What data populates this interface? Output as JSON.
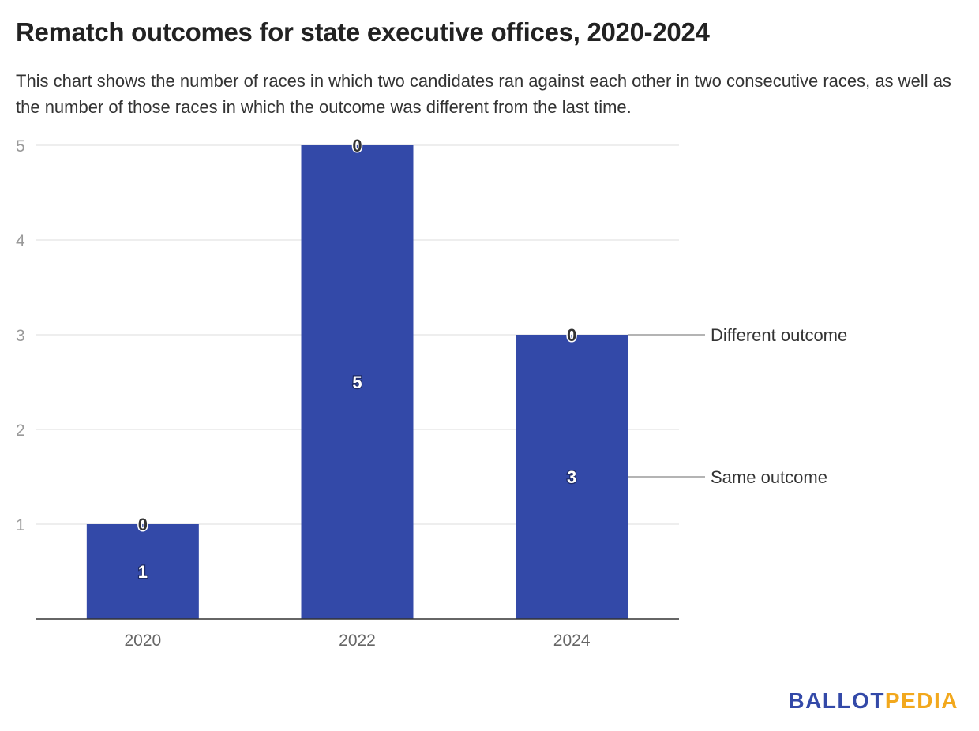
{
  "title": "Rematch outcomes for state executive offices, 2020-2024",
  "subtitle": "This chart shows the number of races in which two candidates ran against each other in two consecutive races, as well as the number of those races in which the outcome was different from the last time.",
  "brand": {
    "part1": "BALLOT",
    "part2": "PEDIA"
  },
  "chart_data": {
    "type": "bar",
    "stacked": true,
    "categories": [
      "2020",
      "2022",
      "2024"
    ],
    "series": [
      {
        "name": "Same outcome",
        "values": [
          1,
          5,
          3
        ],
        "color": "#3349a8"
      },
      {
        "name": "Different outcome",
        "values": [
          0,
          0,
          0
        ],
        "color": "#f2a81d"
      }
    ],
    "ylim": [
      0,
      5
    ],
    "yticks": [
      "1",
      "2",
      "3",
      "4",
      "5"
    ],
    "grid": true,
    "legend": "right, labels attached to last bar"
  }
}
